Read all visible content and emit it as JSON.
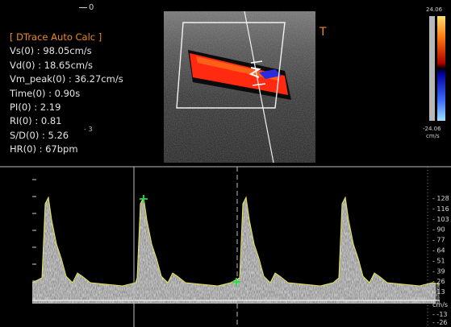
{
  "top_marker": "0",
  "panel": {
    "title": "[ DTrace Auto Calc ]",
    "measurements": [
      {
        "label": "Vs(0) : 98.05cm/s"
      },
      {
        "label": "Vd(0) : 18.65cm/s"
      },
      {
        "label": "Vm_peak(0) : 36.27cm/s"
      },
      {
        "label": "Time(0) : 0.90s"
      },
      {
        "label": "PI(0) : 2.19"
      },
      {
        "label": "RI(0) : 0.81"
      },
      {
        "label": "S/D(0) : 5.26"
      },
      {
        "label": "HR(0) : 67bpm"
      }
    ],
    "cursor_mark": "3"
  },
  "transducer_marker": "T",
  "color_bar": {
    "top_label": "24.06",
    "bottom_label": "-24.06",
    "unit": "cm/s"
  },
  "velocity_scale": {
    "unit": "cm/s",
    "ticks": [
      "128",
      "116",
      "103",
      "90",
      "77",
      "64",
      "51",
      "39",
      "26",
      "13",
      "-13",
      "-26"
    ]
  },
  "colors": {
    "accent": "#f08a1c",
    "trace": "#e8e84a",
    "marker": "#22dd44",
    "flow": "#ff2a10"
  }
}
